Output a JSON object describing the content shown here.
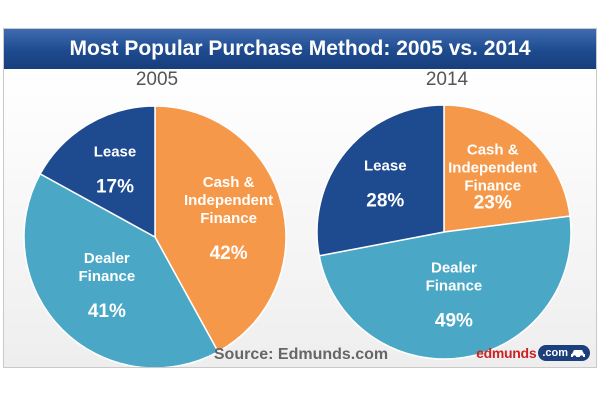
{
  "title": "Most Popular Purchase Method: 2005 vs. 2014",
  "source": "Source: Edmunds.com",
  "logo": {
    "text": "edmunds",
    "badge": ".com"
  },
  "colors": {
    "Lease": "#1e4a8f",
    "Dealer Finance": "#4aa8c6",
    "Cash & Independent Finance": "#f5984a"
  },
  "chart_data": [
    {
      "type": "pie",
      "title": "2005",
      "labels": [
        "Cash & Independent Finance",
        "Dealer Finance",
        "Lease"
      ],
      "values": [
        42,
        41,
        17
      ],
      "display": [
        "Cash &\nIndependent\nFinance\n\n42%",
        "Dealer\nFinance\n\n41%",
        "Lease\n\n17%"
      ]
    },
    {
      "type": "pie",
      "title": "2014",
      "labels": [
        "Cash & Independent Finance",
        "Dealer Finance",
        "Lease"
      ],
      "values": [
        23,
        49,
        28
      ],
      "display": [
        "Cash &\nIndependent\nFinance\n23%",
        "Dealer\nFinance\n\n49%",
        "Lease\n\n28%"
      ]
    }
  ]
}
